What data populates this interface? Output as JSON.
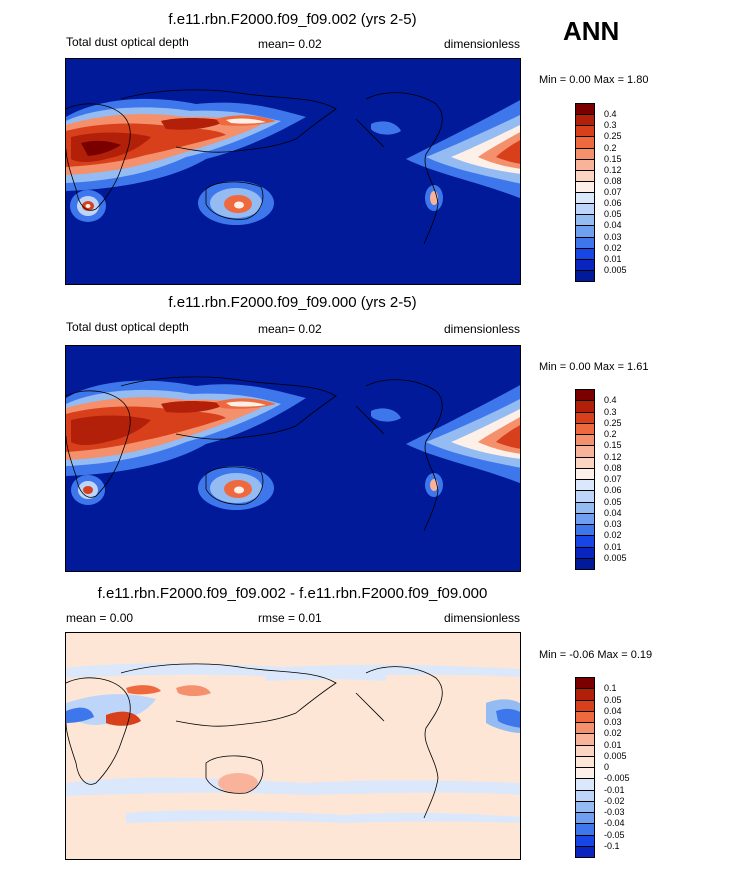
{
  "season": "ANN",
  "colors": {
    "ocean_deep": "#001a99",
    "land_outline": "#000000"
  },
  "panels": [
    {
      "title": "f.e11.rbn.F2000.f09_f09.002 (yrs 2-5)",
      "left_label": "Total dust optical depth",
      "mid_label": "mean=  0.02",
      "right_label": "dimensionless",
      "minmax": "Min =   0.00 Max =   1.80",
      "colorbar": {
        "labels": [
          "0.4",
          "0.3",
          "0.25",
          "0.2",
          "0.15",
          "0.12",
          "0.08",
          "0.07",
          "0.06",
          "0.05",
          "0.04",
          "0.03",
          "0.02",
          "0.01",
          "0.005"
        ],
        "colors": [
          "#7a0000",
          "#b3200a",
          "#d8401c",
          "#ee6a3e",
          "#f4906c",
          "#f8b39a",
          "#fbd4c2",
          "#fdf0e8",
          "#dbe8fb",
          "#bcd5f8",
          "#94bcf2",
          "#6e9ff0",
          "#3e77ec",
          "#1846e6",
          "#0a25bf",
          "#001a99"
        ]
      }
    },
    {
      "title": "f.e11.rbn.F2000.f09_f09.000 (yrs 2-5)",
      "left_label": "Total dust optical depth",
      "mid_label": "mean=  0.02",
      "right_label": "dimensionless",
      "minmax": "Min =   0.00 Max =   1.61",
      "colorbar": {
        "labels": [
          "0.4",
          "0.3",
          "0.25",
          "0.2",
          "0.15",
          "0.12",
          "0.08",
          "0.07",
          "0.06",
          "0.05",
          "0.04",
          "0.03",
          "0.02",
          "0.01",
          "0.005"
        ],
        "colors": [
          "#7a0000",
          "#b3200a",
          "#d8401c",
          "#ee6a3e",
          "#f4906c",
          "#f8b39a",
          "#fbd4c2",
          "#fdf0e8",
          "#dbe8fb",
          "#bcd5f8",
          "#94bcf2",
          "#6e9ff0",
          "#3e77ec",
          "#1846e6",
          "#0a25bf",
          "#001a99"
        ]
      }
    },
    {
      "title": "f.e11.rbn.F2000.f09_f09.002 - f.e11.rbn.F2000.f09_f09.000",
      "left_label": "mean =   0.00",
      "mid_label": "rmse =   0.01",
      "right_label": "dimensionless",
      "minmax": "Min =  -0.06 Max =   0.19",
      "colorbar": {
        "labels": [
          "0.1",
          "0.05",
          "0.04",
          "0.03",
          "0.02",
          "0.01",
          "0.005",
          "0",
          "-0.005",
          "-0.01",
          "-0.02",
          "-0.03",
          "-0.04",
          "-0.05",
          "-0.1"
        ],
        "colors": [
          "#7a0000",
          "#b3200a",
          "#d8401c",
          "#ee6a3e",
          "#f4906c",
          "#f8b39a",
          "#fbd4c2",
          "#fde6d6",
          "#fdf0e8",
          "#dbe8fb",
          "#bcd5f8",
          "#94bcf2",
          "#6e9ff0",
          "#3e77ec",
          "#1846e6",
          "#0a25bf"
        ]
      }
    }
  ],
  "chart_data": [
    {
      "type": "heatmap",
      "title": "f.e11.rbn.F2000.f09_f09.002 (yrs 2-5)",
      "variable": "Total dust optical depth",
      "units": "dimensionless",
      "mean": 0.02,
      "min": 0.0,
      "max": 1.8,
      "levels": [
        0.005,
        0.01,
        0.02,
        0.03,
        0.04,
        0.05,
        0.06,
        0.07,
        0.08,
        0.12,
        0.15,
        0.2,
        0.25,
        0.3,
        0.4
      ]
    },
    {
      "type": "heatmap",
      "title": "f.e11.rbn.F2000.f09_f09.000 (yrs 2-5)",
      "variable": "Total dust optical depth",
      "units": "dimensionless",
      "mean": 0.02,
      "min": 0.0,
      "max": 1.61,
      "levels": [
        0.005,
        0.01,
        0.02,
        0.03,
        0.04,
        0.05,
        0.06,
        0.07,
        0.08,
        0.12,
        0.15,
        0.2,
        0.25,
        0.3,
        0.4
      ]
    },
    {
      "type": "heatmap",
      "title": "f.e11.rbn.F2000.f09_f09.002 - f.e11.rbn.F2000.f09_f09.000",
      "units": "dimensionless",
      "mean": 0.0,
      "rmse": 0.01,
      "min": -0.06,
      "max": 0.19,
      "levels": [
        -0.1,
        -0.05,
        -0.04,
        -0.03,
        -0.02,
        -0.01,
        -0.005,
        0,
        0.005,
        0.01,
        0.02,
        0.03,
        0.04,
        0.05,
        0.1
      ]
    }
  ]
}
